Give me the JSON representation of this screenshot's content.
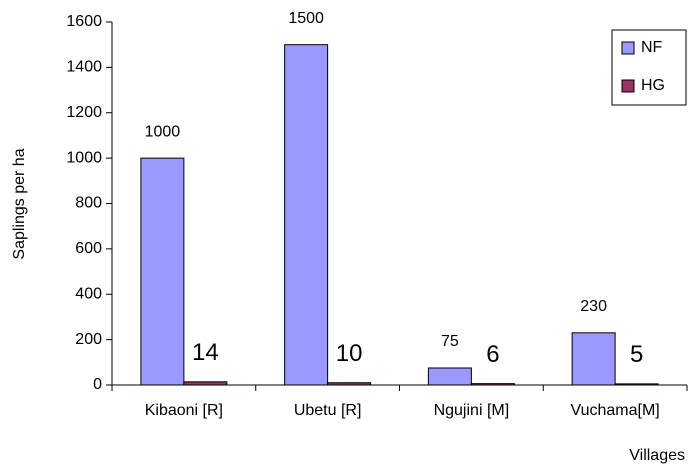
{
  "chart_data": {
    "type": "bar",
    "x_label": "Villages",
    "y_label": "Saplings per ha",
    "categories": [
      "Kibaoni [R]",
      "Ubetu [R]",
      "Ngujini [M]",
      "Vuchama[M]"
    ],
    "series": [
      {
        "name": "NF",
        "color": "#9999ff",
        "values": [
          1000,
          1500,
          75,
          230
        ]
      },
      {
        "name": "HG",
        "color": "#993366",
        "values": [
          14,
          10,
          6,
          5
        ]
      }
    ],
    "ylim": [
      0,
      1600
    ],
    "yticks": [
      0,
      200,
      400,
      600,
      800,
      1000,
      1200,
      1400,
      1600
    ],
    "grid": false,
    "legend": "upper right"
  }
}
